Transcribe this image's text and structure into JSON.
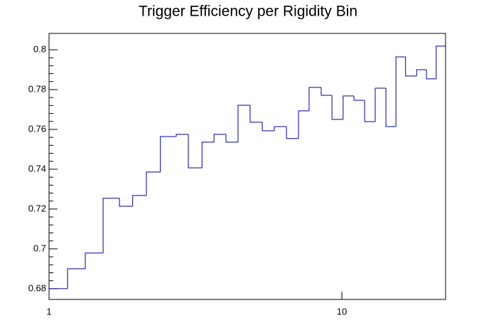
{
  "chart_data": {
    "type": "histogram",
    "title": "Trigger Efficiency per Rigidity Bin",
    "bins": [
      1,
      1.157,
      1.33,
      1.53,
      1.74,
      1.93,
      2.15,
      2.4,
      2.72,
      2.99,
      3.33,
      3.66,
      4.02,
      4.42,
      4.86,
      5.35,
      5.88,
      6.47,
      7.11,
      7.73,
      8.5,
      9.25,
      10.1,
      11.0,
      11.96,
      13.0,
      14.14,
      15.3,
      16.5,
      18.0,
      19.45,
      21.0,
      22.6
    ],
    "values": [
      0.68,
      0.69,
      0.6979,
      0.7254,
      0.7214,
      0.7268,
      0.7386,
      0.7564,
      0.7575,
      0.7407,
      0.7536,
      0.7575,
      0.7536,
      0.7721,
      0.7636,
      0.7593,
      0.7614,
      0.7554,
      0.7693,
      0.7811,
      0.7771,
      0.765,
      0.7768,
      0.7746,
      0.7639,
      0.7807,
      0.7614,
      0.7964,
      0.7868,
      0.79,
      0.7854,
      0.8018
    ],
    "color": "#000099",
    "xlim": [
      1,
      22.6
    ],
    "xticks": [
      1,
      10
    ],
    "xlog": true,
    "ylim": [
      0.6746,
      0.8082
    ],
    "yticks": [
      0.68,
      0.7,
      0.72,
      0.74,
      0.76,
      0.78,
      0.8
    ]
  }
}
